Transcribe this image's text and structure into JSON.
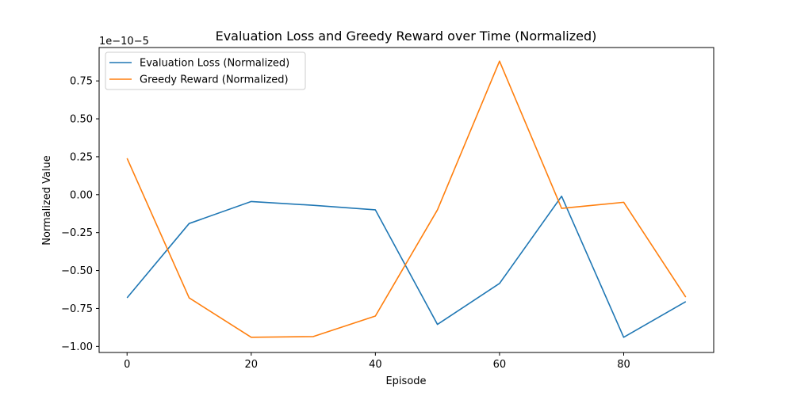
{
  "chart_data": {
    "type": "line",
    "title": "Evaluation Loss and Greedy Reward over Time (Normalized)",
    "xlabel": "Episode",
    "ylabel": "Normalized Value",
    "y_offset_label": "1e−10−5",
    "x_ticks": [
      "0",
      "20",
      "40",
      "60",
      "80"
    ],
    "x_tick_values": [
      0,
      20,
      40,
      60,
      80
    ],
    "y_ticks": [
      "−1.00",
      "−0.75",
      "−0.50",
      "−0.25",
      "0.00",
      "0.25",
      "0.50",
      "0.75"
    ],
    "y_tick_values": [
      -1.0,
      -0.75,
      -0.5,
      -0.25,
      0.0,
      0.25,
      0.5,
      0.75
    ],
    "xlim": [
      -4.5,
      94.5
    ],
    "ylim": [
      -1.04,
      0.97
    ],
    "grid": false,
    "legend_position": "top-left",
    "x": [
      0,
      10,
      20,
      30,
      40,
      50,
      60,
      70,
      80,
      90
    ],
    "series": [
      {
        "name": "Evaluation Loss (Normalized)",
        "color": "#1f77b4",
        "values": [
          -0.68,
          -0.19,
          -0.045,
          -0.07,
          -0.1,
          -0.855,
          -0.585,
          -0.01,
          -0.94,
          -0.705
        ]
      },
      {
        "name": "Greedy Reward (Normalized)",
        "color": "#ff7f0e",
        "values": [
          0.24,
          -0.68,
          -0.94,
          -0.935,
          -0.8,
          -0.1,
          0.88,
          -0.09,
          -0.05,
          -0.675
        ]
      }
    ]
  }
}
